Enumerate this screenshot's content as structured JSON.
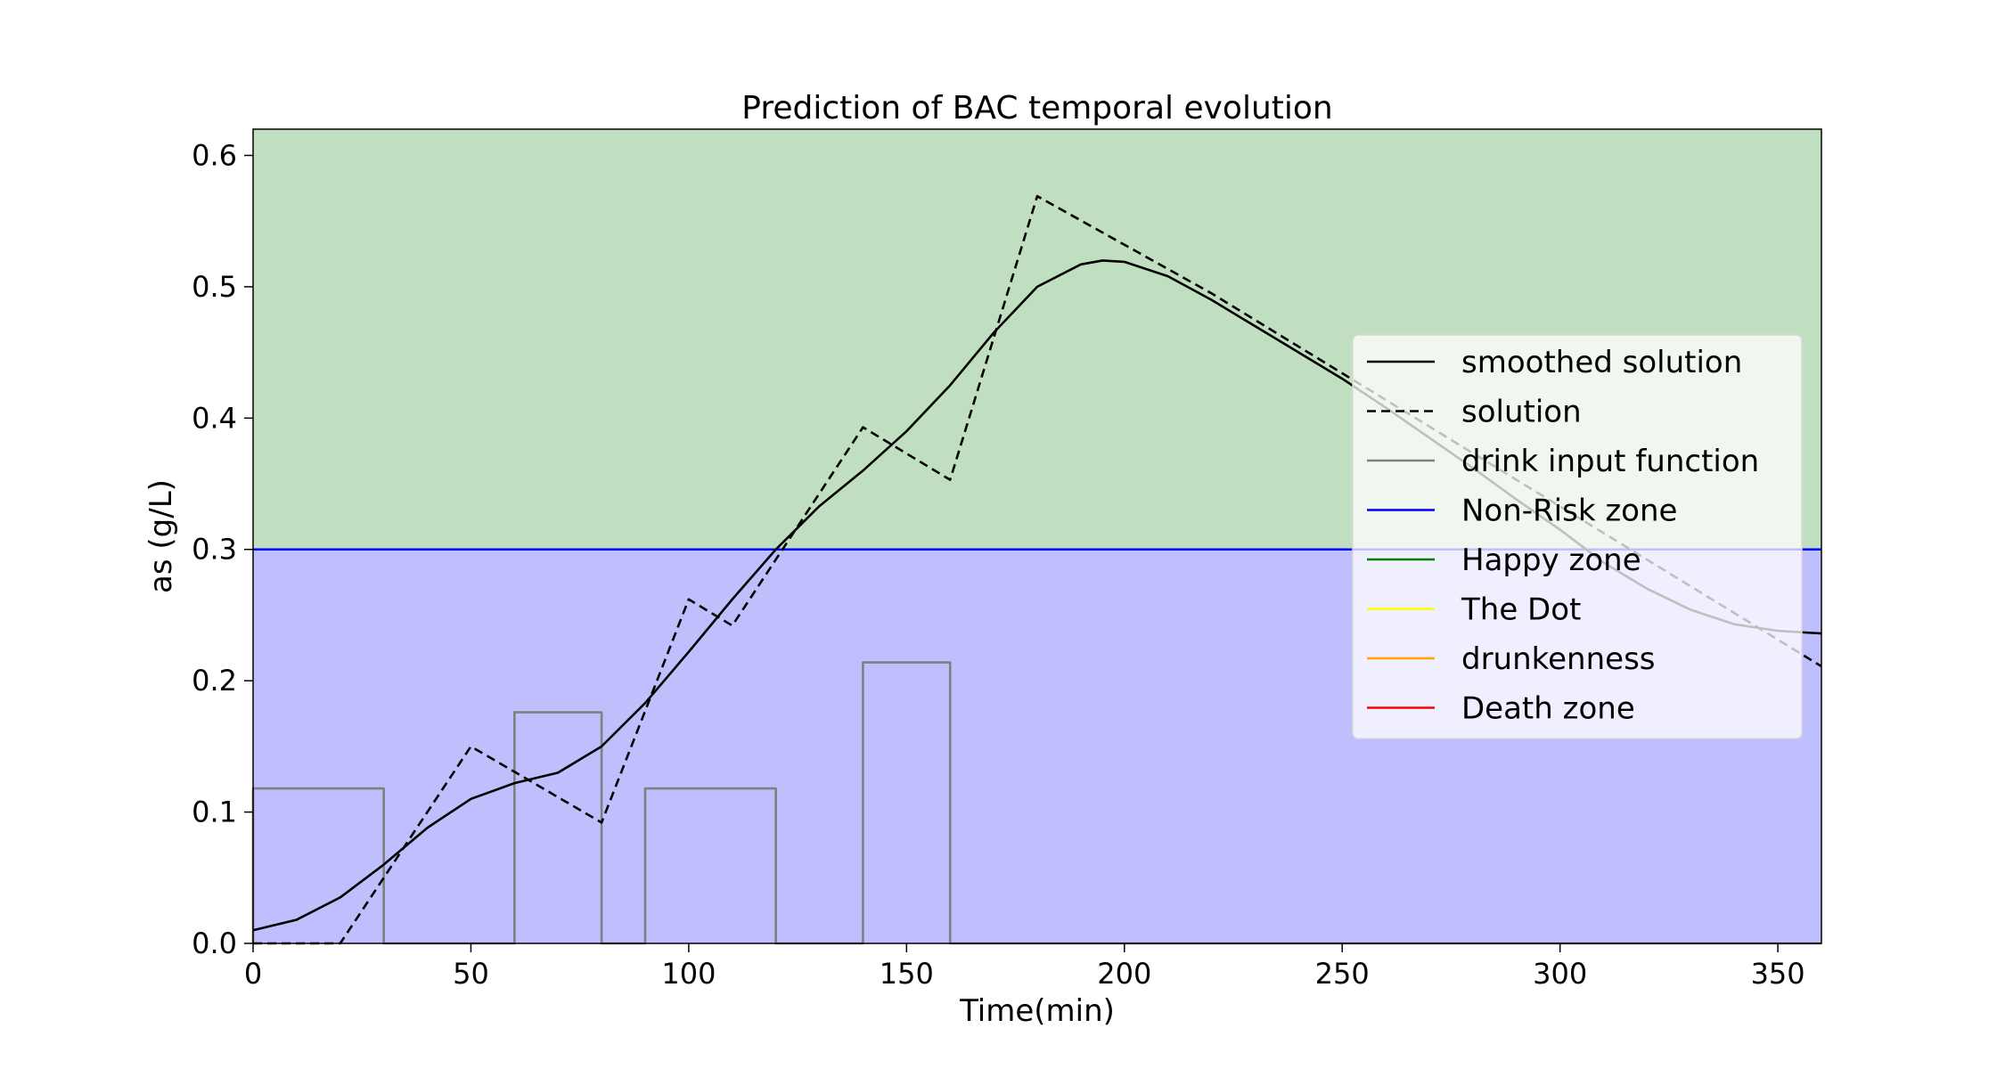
{
  "chart_data": {
    "type": "line",
    "title": "Prediction of BAC temporal evolution",
    "xlabel": "Time(min)",
    "ylabel": "as (g/L)",
    "xlim": [
      0,
      360
    ],
    "ylim": [
      0,
      0.62
    ],
    "xticks": [
      0,
      50,
      100,
      150,
      200,
      250,
      300,
      350
    ],
    "yticks": [
      0.0,
      0.1,
      0.2,
      0.3,
      0.4,
      0.5,
      0.6
    ],
    "grid": false,
    "legend_position": "center-right",
    "zones": [
      {
        "label": "Non-Risk zone",
        "y_from": 0,
        "y_to": 0.3,
        "fill": "#bfbffe"
      },
      {
        "label": "Happy zone",
        "y_from": 0.3,
        "y_to": 0.62,
        "fill": "#c0dfc0"
      }
    ],
    "threshold_line": {
      "y": 0.3,
      "color": "#0000ff"
    },
    "series": [
      {
        "name": "smoothed solution",
        "color": "#000000",
        "dash": "solid",
        "x": [
          0,
          10,
          20,
          30,
          40,
          50,
          60,
          70,
          80,
          90,
          100,
          110,
          120,
          130,
          140,
          150,
          160,
          170,
          180,
          190,
          195,
          200,
          210,
          220,
          230,
          240,
          250,
          260,
          270,
          280,
          290,
          300,
          310,
          320,
          330,
          340,
          350,
          355,
          360
        ],
        "y": [
          0.01,
          0.018,
          0.035,
          0.06,
          0.088,
          0.11,
          0.122,
          0.13,
          0.15,
          0.183,
          0.222,
          0.262,
          0.3,
          0.333,
          0.36,
          0.39,
          0.425,
          0.465,
          0.5,
          0.517,
          0.52,
          0.519,
          0.508,
          0.49,
          0.47,
          0.45,
          0.43,
          0.408,
          0.385,
          0.362,
          0.338,
          0.315,
          0.29,
          0.27,
          0.254,
          0.243,
          0.238,
          0.237,
          0.236
        ]
      },
      {
        "name": "solution",
        "color": "#000000",
        "dash": "dashed",
        "x": [
          0,
          20,
          50,
          80,
          100,
          110,
          140,
          160,
          180,
          220,
          360
        ],
        "y": [
          0.0,
          0.0,
          0.15,
          0.092,
          0.262,
          0.242,
          0.393,
          0.353,
          0.569,
          0.495,
          0.211
        ]
      },
      {
        "name": "drink input function",
        "color": "#808080",
        "dash": "solid",
        "x": [
          0,
          0,
          30,
          30,
          60,
          60,
          80,
          80,
          90,
          90,
          120,
          120,
          140,
          140,
          160,
          160,
          360
        ],
        "y": [
          0.0,
          0.118,
          0.118,
          0.0,
          0.0,
          0.176,
          0.176,
          0.0,
          0.0,
          0.118,
          0.118,
          0.0,
          0.0,
          0.214,
          0.214,
          0.0,
          0.0
        ]
      },
      {
        "name": "Non-Risk zone",
        "color": "#0000ff",
        "dash": "solid",
        "x": [
          0,
          360
        ],
        "y": [
          0.3,
          0.3
        ]
      },
      {
        "name": "Happy zone",
        "color": "#008000",
        "dash": "solid",
        "x": [],
        "y": []
      },
      {
        "name": "The Dot",
        "color": "#ffff00",
        "dash": "solid",
        "x": [],
        "y": []
      },
      {
        "name": "drunkenness",
        "color": "#ffa500",
        "dash": "solid",
        "x": [],
        "y": []
      },
      {
        "name": "Death zone",
        "color": "#ff0000",
        "dash": "solid",
        "x": [],
        "y": []
      }
    ]
  }
}
